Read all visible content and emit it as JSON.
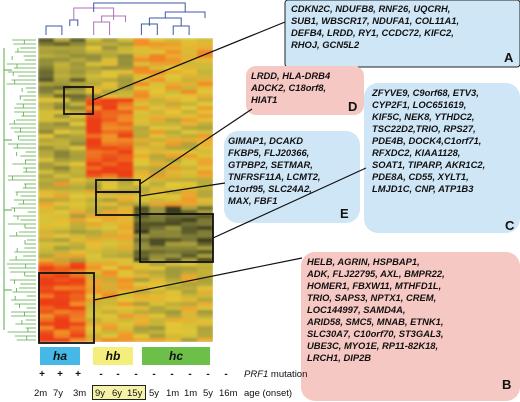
{
  "boxes": [
    {
      "id": "A",
      "color": "#cfe6f7",
      "genes": "CDKN2C, NDUFB8, RNF26, UQCRH,\nSUB1, WBSCR17, NDUFA1, COL11A1,\nDEFB4, LRDD, RY1, CCDC72, KIFC2,\nRHOJ, GCN5L2"
    },
    {
      "id": "B",
      "color": "#f6c8c3",
      "genes": "HELB, AGRIN, HSPBAP1,\nADK, FLJ22795, AXL, BMPR22,\nHOMER1, FBXW11, MTHFD1L,\nTRIO, SAPS3, NPTX1, CREM,\nLOC144997, SAMD4A,\nARID58, SMC5, MNAB, ETNK1,\nSLC30A7, C10orf70, ST3GAL3,\nUBE3C, MYO1E, RP11-82K18,\nLRCH1, DIP2B"
    },
    {
      "id": "C",
      "color": "#cfe6f7",
      "genes": "ZFYVE9, C9orf68, ETV3,\nCYP2F1, LOC651619,\nKIF5C, NEK8, YTHDC2,\nTSC22D2,TRIO, RPS27,\nPDE4B, DOCK4,C1orf71,\nRFXDC2, KIAA1128,\nSOAT1, TIPARP, AKR1C2,\nPDE8A, CD55, XYLT1,\nLMJD1C, CNP, ATP1B3"
    },
    {
      "id": "D",
      "color": "#f6c8c3",
      "genes": "LRDD, HLA-DRB4\nADCK2, C18orf8,\nHIAT1"
    },
    {
      "id": "E",
      "color": "#cfe6f7",
      "genes": "GIMAP1, DCAKD\nFKBP5, FLJ20366,\nGTPBP2, SETMAR,\nTNFRSF11A, LCMT2,\nC1orf95, SLC24A2,\nMAX, FBF1"
    }
  ],
  "groups": [
    {
      "label": "ha",
      "color": "#45b8e6"
    },
    {
      "label": "hb",
      "color": "#f4ef7c"
    },
    {
      "label": "hc",
      "color": "#6cc04a"
    }
  ],
  "mutation_symbols": [
    "+",
    "+",
    "+",
    "-",
    "-",
    "-",
    "-",
    "-",
    "-",
    "-",
    "-"
  ],
  "ages": [
    "2m",
    "7y",
    "3m",
    "9y",
    "6y",
    "15y",
    "5y",
    "1m",
    "1m",
    "5y",
    "16m"
  ],
  "caption": {
    "gene": "PRF1",
    "rest": " mutation",
    "line2": "age (onset)"
  },
  "heatmap_colors": {
    "low": "#3a3e22",
    "mid": "#d8c63a",
    "high": "#f0501c"
  }
}
